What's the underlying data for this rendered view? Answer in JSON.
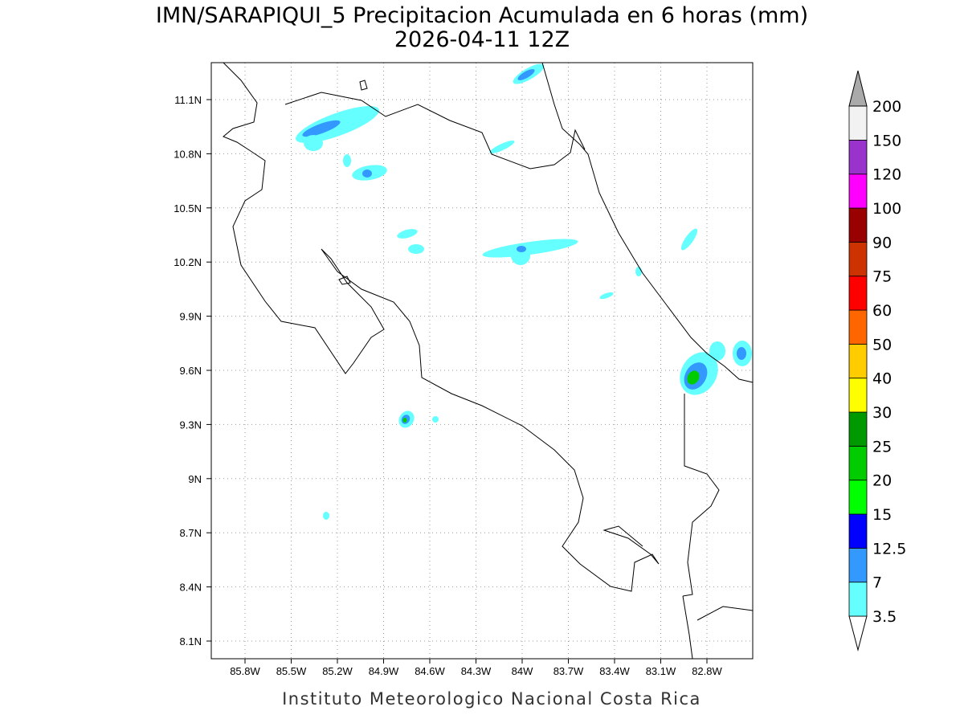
{
  "header": {
    "title": "IMN/SARAPIQUI_5 Precipitacion Acumulada en 6 horas (mm)",
    "subtitle": "2026-04-11 12Z"
  },
  "map": {
    "lat_ticks": [
      "11.1N",
      "10.8N",
      "10.5N",
      "10.2N",
      "9.9N",
      "9.6N",
      "9.3N",
      "9N",
      "8.7N",
      "8.4N",
      "8.1N"
    ],
    "lon_ticks": [
      "85.8W",
      "85.5W",
      "85.2W",
      "84.9W",
      "84.6W",
      "84.3W",
      "84W",
      "83.7W",
      "83.4W",
      "83.1W",
      "82.8W"
    ]
  },
  "colorbar": {
    "levels": [
      "3.5",
      "7",
      "12.5",
      "15",
      "20",
      "25",
      "30",
      "40",
      "50",
      "60",
      "75",
      "90",
      "100",
      "120",
      "150",
      "200"
    ],
    "colors": [
      "#66ffff",
      "#3399ff",
      "#0000ff",
      "#00ff00",
      "#00cc00",
      "#009900",
      "#ffff00",
      "#ffcc00",
      "#ff6600",
      "#ff0000",
      "#cc3300",
      "#990000",
      "#ff00ff",
      "#9933cc",
      "#f2f2f2"
    ],
    "below_color": "#ffffff",
    "above_color": "#aaaaaa"
  },
  "footer": {
    "credit": "Instituto Meteorologico Nacional Costa Rica"
  }
}
